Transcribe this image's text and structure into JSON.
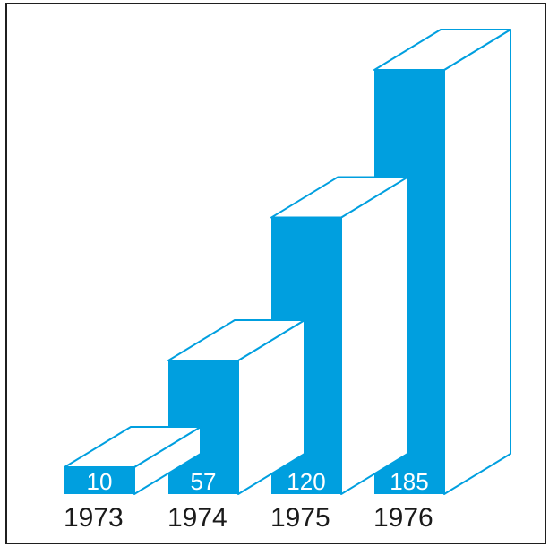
{
  "chart_data": {
    "type": "bar",
    "style": "3d",
    "categories": [
      "1973",
      "1974",
      "1975",
      "1976"
    ],
    "values": [
      10,
      57,
      120,
      185
    ],
    "value_labels": [
      "10",
      "57",
      "120",
      "185"
    ],
    "title": "",
    "xlabel": "",
    "ylabel": "",
    "ylim": [
      0,
      185
    ],
    "grid": false,
    "legend": "none",
    "colors": {
      "bar_front": "#009fdf",
      "bar_outline": "#009fdf",
      "bar_side": "#ffffff",
      "frame": "#1f1f1f",
      "year_text": "#1a1a1a",
      "value_text": "#ffffff"
    }
  }
}
